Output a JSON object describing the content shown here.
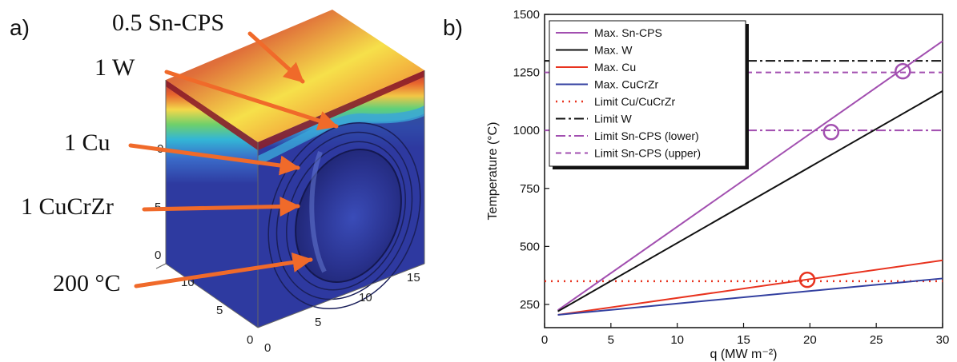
{
  "panel_a": {
    "label": "a)",
    "annotations": [
      "0.5 Sn-CPS",
      "1 W",
      "1 Cu",
      "1 CuCrZr",
      "200 °C"
    ],
    "axis_ticks": {
      "vertical": [
        "0",
        "5"
      ],
      "left_depth": [
        "0",
        "5",
        "10"
      ],
      "right_width": [
        "0",
        "5",
        "10",
        "15"
      ],
      "top_mark": "0"
    },
    "colors": {
      "arrow": "#f06a2a",
      "cold": "#2e3aa0",
      "hot": "#b8323a"
    }
  },
  "panel_b": {
    "label": "b)"
  },
  "chart_data": {
    "type": "line",
    "xlabel": "q (MW m⁻²)",
    "ylabel": "Temperature (°C)",
    "xlim": [
      0,
      30
    ],
    "ylim": [
      150,
      1500
    ],
    "xticks": [
      0,
      5,
      10,
      15,
      20,
      25,
      30
    ],
    "yticks": [
      250,
      500,
      750,
      1000,
      1250,
      1500
    ],
    "legend_placement": "top-left",
    "series": [
      {
        "name": "Max. Sn-CPS",
        "color": "#a24fb0",
        "style": "solid",
        "x": [
          1,
          30
        ],
        "y": [
          225,
          1385
        ]
      },
      {
        "name": "Max. W",
        "color": "#111111",
        "style": "solid",
        "x": [
          1,
          30
        ],
        "y": [
          220,
          1170
        ]
      },
      {
        "name": "Max. Cu",
        "color": "#e8331f",
        "style": "solid",
        "x": [
          1,
          30
        ],
        "y": [
          205,
          440
        ]
      },
      {
        "name": "Max. CuCrZr",
        "color": "#3340a0",
        "style": "solid",
        "x": [
          1,
          30
        ],
        "y": [
          205,
          362
        ]
      },
      {
        "name": "Limit Cu/CuCrZr",
        "color": "#e8331f",
        "style": "dotted",
        "x": [
          0,
          30
        ],
        "y": [
          350,
          350
        ]
      },
      {
        "name": "Limit W",
        "color": "#111111",
        "style": "dashdot",
        "x": [
          0,
          30
        ],
        "y": [
          1300,
          1300
        ]
      },
      {
        "name": "Limit Sn-CPS (lower)",
        "color": "#a24fb0",
        "style": "dashdot",
        "x": [
          0,
          30
        ],
        "y": [
          1000,
          1000
        ]
      },
      {
        "name": "Limit Sn-CPS (upper)",
        "color": "#a24fb0",
        "style": "dashed",
        "x": [
          0,
          30
        ],
        "y": [
          1250,
          1250
        ]
      }
    ],
    "markers": [
      {
        "x": 21.6,
        "y": 993,
        "color": "#a24fb0"
      },
      {
        "x": 27.0,
        "y": 1255,
        "color": "#a24fb0"
      },
      {
        "x": 19.8,
        "y": 356,
        "color": "#e8331f"
      }
    ]
  }
}
